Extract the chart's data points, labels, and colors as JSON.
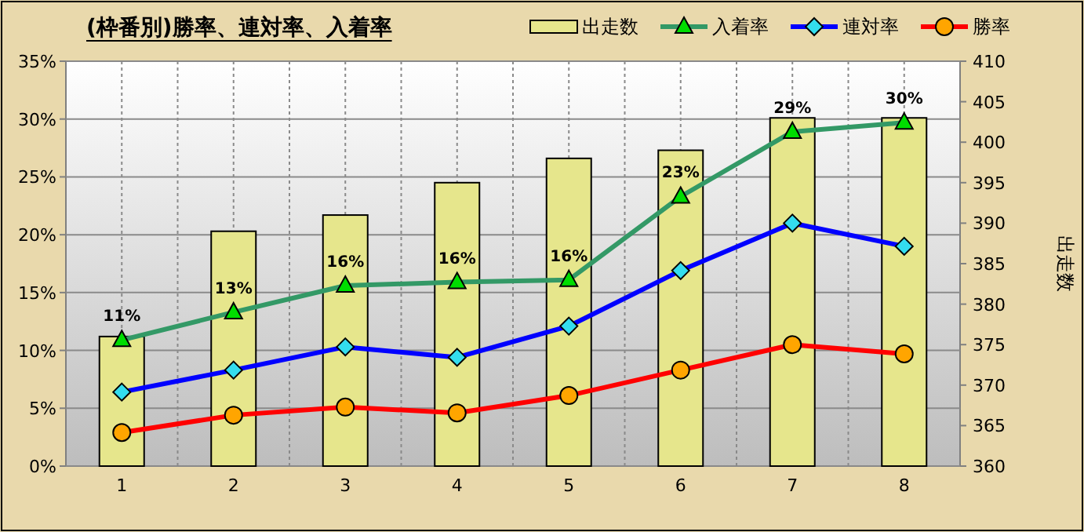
{
  "chart_data": {
    "type": "line",
    "title": "(枠番別)勝率、連対率、入着率",
    "y2label": "出走数",
    "categories": [
      "1",
      "2",
      "3",
      "4",
      "5",
      "6",
      "7",
      "8"
    ],
    "series": [
      {
        "name": "出走数",
        "type": "bar",
        "axis": "y2",
        "color": "#e6e68c",
        "values": [
          376,
          389,
          391,
          395,
          398,
          399,
          403,
          403
        ]
      },
      {
        "name": "入着率",
        "color": "#339966",
        "marker": "triangle",
        "values": [
          10.9,
          13.3,
          15.6,
          15.9,
          16.1,
          23.3,
          28.9,
          29.7
        ],
        "value_labels": [
          "11%",
          "13%",
          "16%",
          "16%",
          "16%",
          "23%",
          "29%",
          "30%"
        ]
      },
      {
        "name": "連対率",
        "color": "#0000ff",
        "marker": "diamond",
        "values": [
          6.4,
          8.3,
          10.3,
          9.4,
          12.1,
          16.9,
          21.0,
          19.0
        ]
      },
      {
        "name": "勝率",
        "color": "#ff0000",
        "marker": "circle",
        "values": [
          2.9,
          4.4,
          5.1,
          4.6,
          6.1,
          8.3,
          10.5,
          9.7
        ]
      }
    ],
    "ylim": [
      0,
      35
    ],
    "yticks": [
      {
        "value": 0,
        "label": "0%"
      },
      {
        "value": 5,
        "label": "5%"
      },
      {
        "value": 10,
        "label": "10%"
      },
      {
        "value": 15,
        "label": "15%"
      },
      {
        "value": 20,
        "label": "20%"
      },
      {
        "value": 25,
        "label": "25%"
      },
      {
        "value": 30,
        "label": "30%"
      },
      {
        "value": 35,
        "label": "35%"
      }
    ],
    "y2lim": [
      360,
      410
    ],
    "y2ticks": [
      360,
      365,
      370,
      375,
      380,
      385,
      390,
      395,
      400,
      405,
      410
    ],
    "grid": true,
    "legend": "top right"
  }
}
